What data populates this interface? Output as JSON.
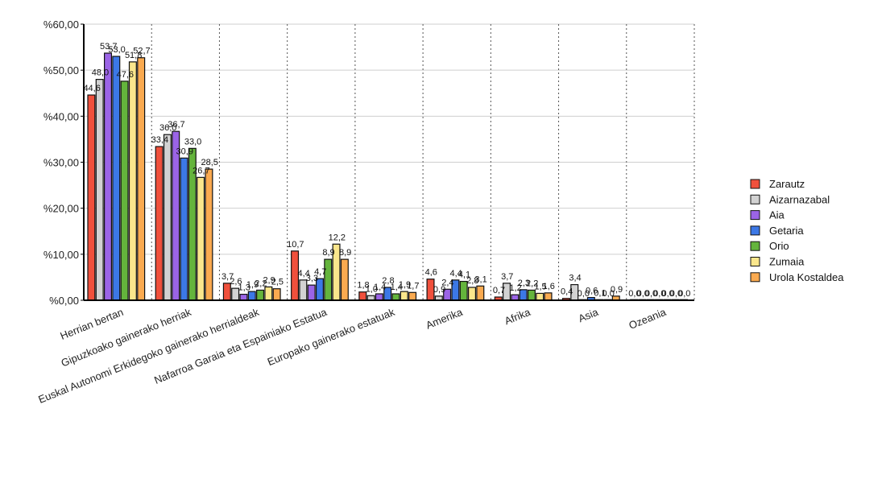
{
  "chart_data": {
    "type": "bar",
    "title": "",
    "xlabel": "",
    "ylabel": "",
    "ylim": [
      0,
      60
    ],
    "y_ticks": [
      "%0,00",
      "%10,00",
      "%20,00",
      "%30,00",
      "%40,00",
      "%50,00",
      "%60,00"
    ],
    "grid": "horizontal",
    "legend_position": "right",
    "categories": [
      "Herrian bertan",
      "Gipuzkoako gainerako herriak",
      "Euskal Autonomi Erkidegoko gainerako herrialdeak",
      "Nafarroa Garaia eta Espainiako Estatua",
      "Europako gainerako estatuak",
      "Amerika",
      "Afrika",
      "Asia",
      "Ozeania"
    ],
    "series": [
      {
        "name": "Zarautz",
        "color": "#f0503c",
        "values": [
          44.6,
          33.4,
          3.7,
          10.7,
          1.8,
          4.6,
          0.7,
          0.4,
          0.0
        ],
        "labels": [
          "44,6",
          "33,4",
          "3,7",
          "10,7",
          "1,8",
          "4,6",
          "0,7",
          "0,4",
          "0,0"
        ]
      },
      {
        "name": "Aizarnazabal",
        "color": "#d2d2d2",
        "values": [
          48.0,
          36.0,
          2.6,
          4.4,
          1.0,
          0.9,
          3.7,
          3.4,
          0.0
        ],
        "labels": [
          "48,0",
          "36,0",
          "2,6",
          "4,4",
          "1,0",
          "0,9",
          "3,7",
          "3,4",
          "0,0"
        ]
      },
      {
        "name": "Aia",
        "color": "#9b64e6",
        "values": [
          53.7,
          36.7,
          1.3,
          3.3,
          1.4,
          2.4,
          1.2,
          0.0,
          0.0
        ],
        "labels": [
          "53,7",
          "36,7",
          "1,3",
          "3,3",
          "1,4",
          "2,4",
          "1,2",
          "0,0",
          "0,0"
        ]
      },
      {
        "name": "Getaria",
        "color": "#3c78e6",
        "values": [
          53.0,
          30.9,
          1.9,
          4.7,
          2.8,
          4.4,
          2.3,
          0.6,
          0.0
        ],
        "labels": [
          "53,0",
          "30,9",
          "1,9",
          "4,7",
          "2,8",
          "4,4",
          "2,3",
          "0,6",
          "0,0"
        ]
      },
      {
        "name": "Orio",
        "color": "#64b43c",
        "values": [
          47.6,
          33.0,
          2.2,
          8.9,
          1.4,
          4.1,
          2.2,
          0.1,
          0.0
        ],
        "labels": [
          "47,6",
          "33,0",
          "2,2",
          "8,9",
          "1,4",
          "4,1",
          "2,2",
          "0,1",
          "0,0"
        ]
      },
      {
        "name": "Zumaia",
        "color": "#fae68c",
        "values": [
          51.8,
          26.7,
          2.9,
          12.2,
          1.9,
          2.8,
          1.5,
          0.0,
          0.0
        ],
        "labels": [
          "51,8",
          "26,7",
          "2,9",
          "12,2",
          "1,9",
          "2,8",
          "1,5",
          "0,0",
          "0,0"
        ]
      },
      {
        "name": "Urola Kostaldea",
        "color": "#faaa50",
        "values": [
          52.7,
          28.5,
          2.5,
          8.9,
          1.7,
          3.1,
          1.6,
          0.9,
          0.0
        ],
        "labels": [
          "52,7",
          "28,5",
          "2,5",
          "8,9",
          "1,7",
          "3,1",
          "1,6",
          "0,9",
          "0,0"
        ]
      }
    ]
  }
}
